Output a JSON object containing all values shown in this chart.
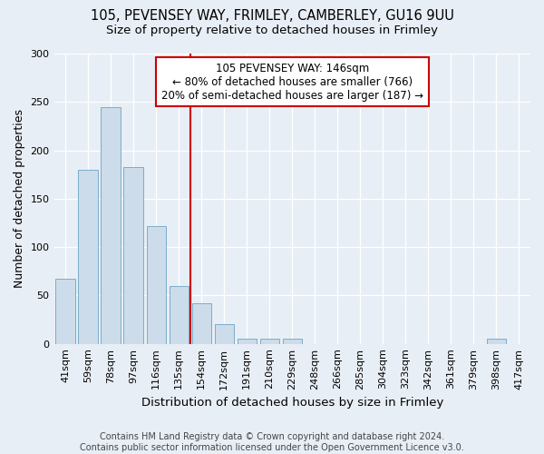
{
  "title_line1": "105, PEVENSEY WAY, FRIMLEY, CAMBERLEY, GU16 9UU",
  "title_line2": "Size of property relative to detached houses in Frimley",
  "xlabel": "Distribution of detached houses by size in Frimley",
  "ylabel": "Number of detached properties",
  "categories": [
    "41sqm",
    "59sqm",
    "78sqm",
    "97sqm",
    "116sqm",
    "135sqm",
    "154sqm",
    "172sqm",
    "191sqm",
    "210sqm",
    "229sqm",
    "248sqm",
    "266sqm",
    "285sqm",
    "304sqm",
    "323sqm",
    "342sqm",
    "361sqm",
    "379sqm",
    "398sqm",
    "417sqm"
  ],
  "values": [
    67,
    180,
    245,
    183,
    122,
    60,
    42,
    20,
    5,
    5,
    5,
    0,
    0,
    0,
    0,
    0,
    0,
    0,
    0,
    5,
    0
  ],
  "bar_color": "#ccdcea",
  "bar_edge_color": "#7aaec8",
  "vline_x_index": 6,
  "vline_color": "#cc0000",
  "annotation_text": "105 PEVENSEY WAY: 146sqm\n← 80% of detached houses are smaller (766)\n20% of semi-detached houses are larger (187) →",
  "annotation_box_color": "#ffffff",
  "annotation_box_edge_color": "#cc0000",
  "ylim": [
    0,
    300
  ],
  "yticks": [
    0,
    50,
    100,
    150,
    200,
    250,
    300
  ],
  "background_color": "#e8eef5",
  "plot_background_color": "#e8eef5",
  "footer_text": "Contains HM Land Registry data © Crown copyright and database right 2024.\nContains public sector information licensed under the Open Government Licence v3.0.",
  "title_fontsize": 10.5,
  "subtitle_fontsize": 9.5,
  "ylabel_fontsize": 9,
  "xlabel_fontsize": 9.5,
  "tick_fontsize": 8,
  "footer_fontsize": 7,
  "annot_fontsize": 8.5
}
